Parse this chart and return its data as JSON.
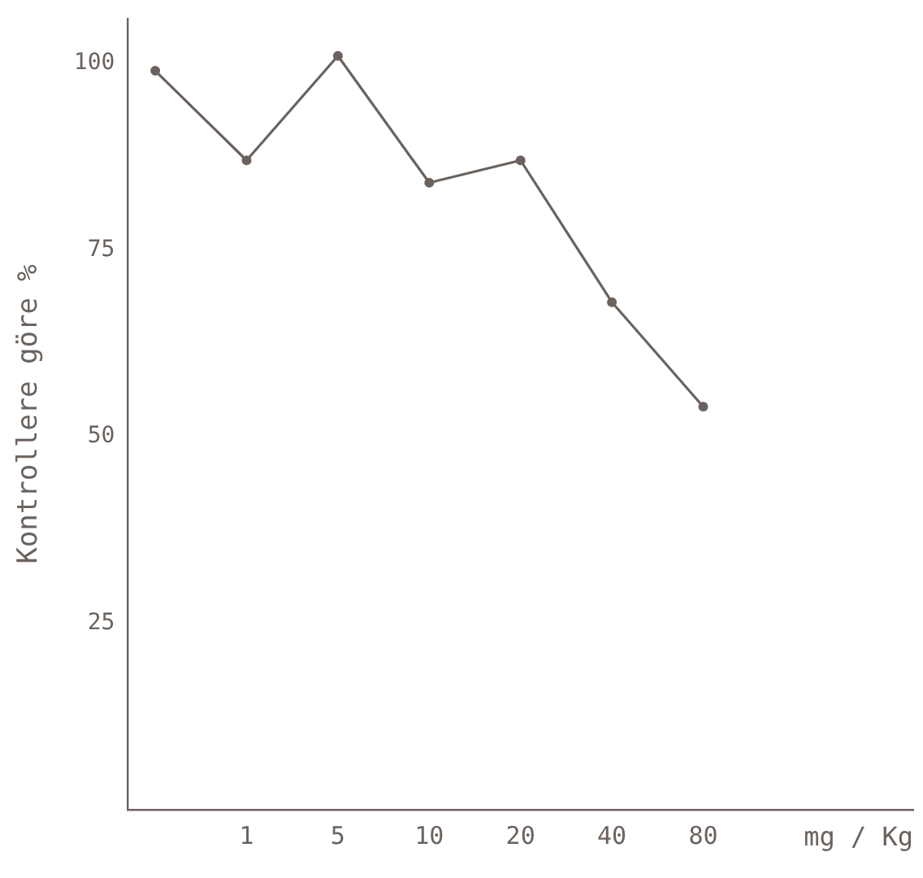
{
  "chart_data": {
    "type": "line",
    "ylabel": "Kontrollere göre %",
    "xlabel": "mg / Kg",
    "categories": [
      null,
      "1",
      "5",
      "10",
      "20",
      "40",
      "80"
    ],
    "series": [
      {
        "color": "#6b625e",
        "values": [
          99,
          87,
          101,
          84,
          87,
          68,
          54
        ]
      }
    ],
    "ylim": [
      0,
      106
    ],
    "yticks": [
      25,
      50,
      75,
      100
    ],
    "grid": false,
    "legend": false,
    "marker": "circle",
    "line_style": "solid"
  }
}
